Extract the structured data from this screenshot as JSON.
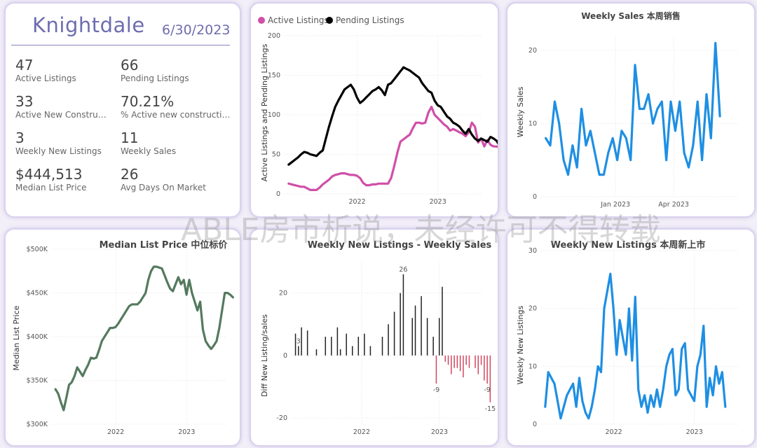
{
  "colors": {
    "accent": "#6d6db0",
    "active": "#d04fa8",
    "pending": "#000000",
    "sales": "#1e8fe3",
    "price": "#547a5e",
    "diff_pos": "#222222",
    "diff_neg": "#d1465e"
  },
  "kpi": {
    "title": "Knightdale",
    "date": "6/30/2023",
    "items": [
      {
        "value": "47",
        "label": "Active Listings"
      },
      {
        "value": "66",
        "label": "Pending Listings"
      },
      {
        "value": "33",
        "label": "Active New Constructi..."
      },
      {
        "value": "70.21%",
        "label": "% Active new constructions"
      },
      {
        "value": "3",
        "label": "Weekly New Listings"
      },
      {
        "value": "11",
        "label": "Weekly Sales"
      },
      {
        "value": "$444,513",
        "label": "Median List Price"
      },
      {
        "value": "26",
        "label": "Avg Days On Market"
      }
    ]
  },
  "watermark": "ABLE房市析说，未经许可不得转载",
  "chart_data": [
    {
      "id": "listings",
      "type": "line",
      "title": "",
      "legend": [
        "Active Listings",
        "Pending Listings"
      ],
      "legend_position": "top-left",
      "xlabel": "",
      "ylabel": "Active Listings and Pending Listings",
      "x_start": 2021.15,
      "x_step": 0.0385,
      "xlim": [
        2021.1,
        2023.55
      ],
      "ylim": [
        0,
        200
      ],
      "x_ticks": [
        {
          "v": 2022,
          "label": "2022"
        },
        {
          "v": 2023,
          "label": "2023"
        }
      ],
      "y_ticks": [
        0,
        50,
        100,
        150,
        200
      ],
      "grid": true,
      "series": [
        {
          "name": "Active Listings",
          "color": "#d04fa8",
          "values": [
            13,
            12,
            11,
            10,
            9,
            9,
            7,
            5,
            5,
            5,
            8,
            12,
            15,
            18,
            22,
            24,
            25,
            26,
            26,
            25,
            24,
            24,
            23,
            20,
            14,
            11,
            11,
            12,
            12,
            13,
            13,
            13,
            13,
            20,
            35,
            52,
            66,
            69,
            72,
            75,
            83,
            90,
            90,
            89,
            90,
            103,
            110,
            100,
            96,
            92,
            88,
            85,
            80,
            82,
            80,
            78,
            76,
            73,
            78,
            90,
            85,
            65,
            70,
            60,
            68,
            62,
            60,
            60,
            58,
            60,
            55,
            47
          ]
        },
        {
          "name": "Pending Listings",
          "color": "#000000",
          "values": [
            37,
            40,
            43,
            46,
            50,
            53,
            52,
            50,
            49,
            48,
            52,
            55,
            70,
            85,
            98,
            110,
            118,
            125,
            132,
            135,
            138,
            132,
            122,
            115,
            118,
            122,
            126,
            130,
            132,
            135,
            131,
            125,
            138,
            140,
            145,
            150,
            155,
            160,
            158,
            156,
            153,
            150,
            147,
            140,
            135,
            130,
            128,
            118,
            112,
            110,
            104,
            98,
            95,
            90,
            88,
            85,
            80,
            76,
            82,
            75,
            70,
            67,
            70,
            68,
            66,
            72,
            70,
            67,
            60,
            64,
            72,
            66
          ]
        }
      ]
    },
    {
      "id": "weekly-sales",
      "type": "line",
      "title": "Weekly Sales 本周销售",
      "xlabel": "",
      "ylabel": "Weekly Sales",
      "x_start": 2022.7,
      "x_step": 0.0192,
      "xlim": [
        2022.68,
        2023.53
      ],
      "ylim": [
        0,
        22
      ],
      "x_ticks": [
        {
          "v": 2023,
          "label": "Jan 2023"
        },
        {
          "v": 2023.25,
          "label": "Apr 2023"
        }
      ],
      "y_ticks": [
        0,
        10,
        20
      ],
      "grid": true,
      "series": [
        {
          "name": "",
          "color": "#1e8fe3",
          "values": [
            8,
            7,
            13,
            10,
            5,
            3,
            7,
            4,
            12,
            7,
            9,
            6,
            3,
            3,
            6,
            8,
            5,
            9,
            8,
            5,
            18,
            12,
            12,
            14,
            10,
            12,
            13,
            5,
            13,
            9,
            13,
            6,
            4,
            7,
            13,
            5,
            14,
            8,
            21,
            11
          ]
        }
      ]
    },
    {
      "id": "median-price",
      "type": "line",
      "title": "Median List Price  中位标价",
      "xlabel": "",
      "ylabel": "Median List Price",
      "x_start": 2021.15,
      "x_step": 0.0385,
      "xlim": [
        2021.1,
        2023.55
      ],
      "ylim": [
        300000,
        500000
      ],
      "x_ticks": [
        {
          "v": 2022,
          "label": "2022"
        },
        {
          "v": 2023,
          "label": "2023"
        }
      ],
      "y_ticks": [
        {
          "v": 300000,
          "label": "$300K"
        },
        {
          "v": 350000,
          "label": "$350K"
        },
        {
          "v": 400000,
          "label": "$400K"
        },
        {
          "v": 450000,
          "label": "$450K"
        },
        {
          "v": 500000,
          "label": "$500K"
        }
      ],
      "grid": true,
      "series": [
        {
          "name": "",
          "color": "#547a5e",
          "values": [
            340,
            335,
            325,
            316,
            330,
            345,
            348,
            355,
            365,
            360,
            355,
            362,
            368,
            376,
            375,
            376,
            385,
            395,
            400,
            405,
            410,
            410,
            411,
            415,
            420,
            425,
            430,
            435,
            437,
            437,
            437,
            440,
            445,
            450,
            465,
            475,
            480,
            480,
            479,
            478,
            470,
            462,
            455,
            452,
            460,
            468,
            460,
            465,
            448,
            465,
            450,
            440,
            430,
            440,
            408,
            395,
            390,
            386,
            390,
            395,
            410,
            430,
            450,
            450,
            448,
            445
          ]
        }
      ]
    },
    {
      "id": "diff",
      "type": "bar",
      "title": "Weekly New Listings - Weekly Sales",
      "xlabel": "",
      "ylabel": "Diff New Listing/sales",
      "x_start": 2021.15,
      "x_step": 0.0385,
      "xlim": [
        2021.1,
        2023.55
      ],
      "ylim": [
        -22,
        30
      ],
      "x_ticks": [
        {
          "v": 2022,
          "label": "2022"
        },
        {
          "v": 2023,
          "label": "2023"
        }
      ],
      "y_ticks": [
        -20,
        0,
        20
      ],
      "grid": true,
      "annotations": [
        {
          "index": 36,
          "label": "26"
        },
        {
          "index": 1,
          "label": "3"
        },
        {
          "index": 47,
          "label": "-9"
        },
        {
          "index": 65,
          "label": "-15"
        },
        {
          "index": 64,
          "label": "-9"
        }
      ],
      "series": [
        {
          "name": "",
          "color_pos": "#222222",
          "color_neg": "#d1465e",
          "values": [
            7,
            3,
            9,
            0,
            8,
            0,
            0,
            2,
            0,
            0,
            6,
            0,
            6,
            0,
            9,
            2,
            0,
            7,
            0,
            3,
            0,
            6,
            0,
            7,
            0,
            3,
            0,
            0,
            0,
            6,
            0,
            10,
            0,
            14,
            0,
            20,
            26,
            0,
            0,
            12,
            16,
            0,
            19,
            0,
            12,
            0,
            6,
            -9,
            12,
            22,
            -2,
            -3,
            -6,
            -4,
            -4,
            -5,
            -7,
            -3,
            -4,
            0,
            -4,
            -6,
            -3,
            -8,
            -9,
            -15
          ]
        }
      ]
    },
    {
      "id": "weekly-new",
      "type": "line",
      "title": "Weekly New Listings  本周新上市",
      "xlabel": "",
      "ylabel": "Weekly New Listings",
      "x_start": 2021.15,
      "x_step": 0.0385,
      "xlim": [
        2021.1,
        2023.55
      ],
      "ylim": [
        0,
        30
      ],
      "x_ticks": [
        {
          "v": 2022,
          "label": "2022"
        },
        {
          "v": 2023,
          "label": "2023"
        }
      ],
      "y_ticks": [
        0,
        10,
        20,
        30
      ],
      "grid": true,
      "series": [
        {
          "name": "",
          "color": "#1e8fe3",
          "values": [
            3,
            9,
            8,
            7,
            4,
            1,
            3,
            5,
            6,
            7,
            3,
            8,
            4,
            2,
            1,
            3,
            6,
            10,
            9,
            20,
            23,
            26,
            20,
            12,
            18,
            15,
            12,
            20,
            11,
            22,
            6,
            3,
            5,
            2,
            5,
            3,
            6,
            3,
            6,
            10,
            12,
            13,
            5,
            6,
            13,
            14,
            6,
            5,
            4,
            10,
            12,
            17,
            3,
            8,
            5,
            10,
            7,
            9,
            3
          ]
        }
      ]
    }
  ]
}
